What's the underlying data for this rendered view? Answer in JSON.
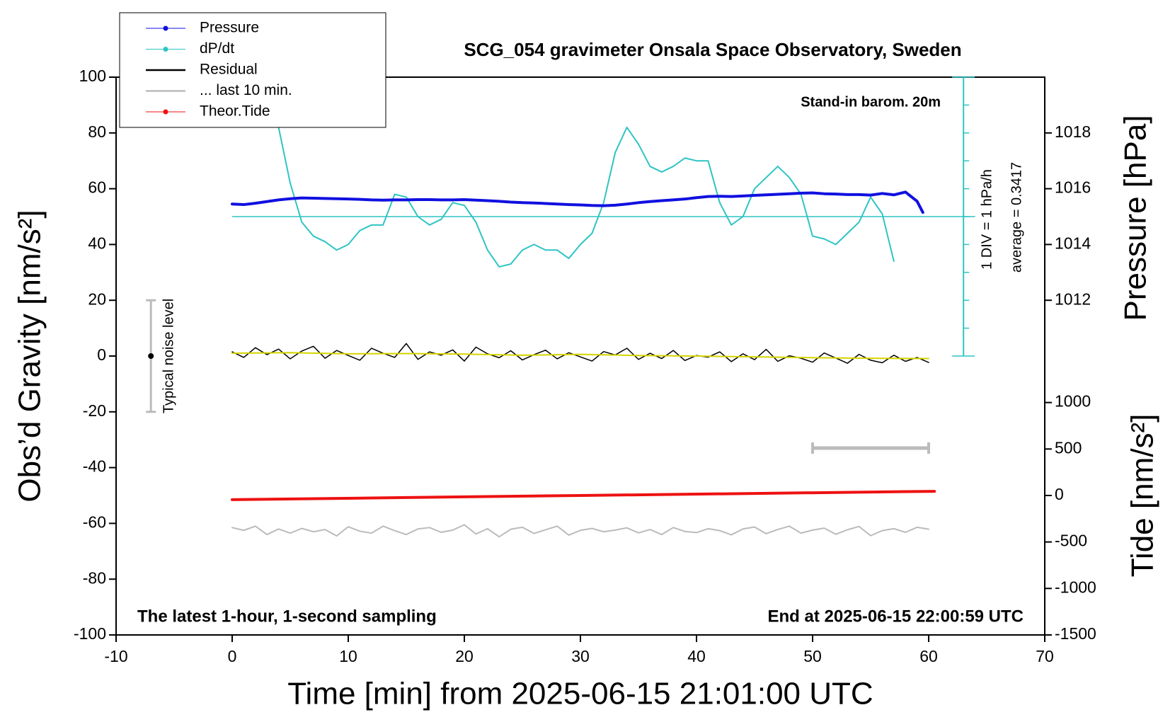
{
  "chart_data": {
    "type": "line",
    "title": "SCG_054 gravimeter Onsala Space Observatory, Sweden",
    "x_label": "Time [min] from 2025-06-15 21:01:00 UTC",
    "y_label": "Obs’d Gravity [nm/s²]",
    "y2_label": "Pressure [hPa]",
    "y3_label": "Tide [nm/s²]",
    "xlim": [
      -10,
      70
    ],
    "xticks": [
      -10,
      0,
      10,
      20,
      30,
      40,
      50,
      60,
      70
    ],
    "ylim": [
      -100,
      100
    ],
    "yticks": [
      -100,
      -80,
      -60,
      -40,
      -20,
      0,
      20,
      40,
      60,
      80,
      100
    ],
    "y2lim": [
      1000,
      1020
    ],
    "y2ticks": [
      1012,
      1014,
      1016,
      1018
    ],
    "y3lim": [
      -1500,
      4500
    ],
    "y3ticks": [
      -1500,
      -1000,
      -500,
      0,
      500,
      1000
    ],
    "annotations": {
      "barometer": "Stand-in barom. 20m",
      "division": "1 DIV = 1 hPa/h",
      "average": "average = 0.3417",
      "noise": "Typical noise level",
      "window": "The latest 1-hour, 1-second sampling",
      "end": "End at 2025-06-15 22:00:59 UTC"
    },
    "reference_line": {
      "y": 50,
      "x": [
        0,
        64
      ],
      "color": "#2ec4c4"
    },
    "dpdt_scale": {
      "x": 63,
      "ticks": [
        0,
        10,
        20,
        30,
        40,
        50,
        60,
        70,
        80,
        90,
        100
      ],
      "color": "#2ec4c4"
    },
    "noise_bar": {
      "x": -7,
      "value": 0,
      "error": 20
    },
    "last_10min_marker": {
      "x": [
        50,
        60
      ],
      "y": -33,
      "color": "#bbbbbb"
    },
    "series": [
      {
        "name": "Pressure",
        "color": "#1010e0",
        "axis": "y2",
        "marker": true,
        "width": 4,
        "x": [
          0,
          1,
          2,
          3,
          4,
          5,
          6,
          7,
          8,
          9,
          10,
          11,
          12,
          13,
          14,
          15,
          16,
          17,
          18,
          19,
          20,
          21,
          22,
          23,
          24,
          25,
          26,
          27,
          28,
          29,
          30,
          31,
          32,
          33,
          34,
          35,
          36,
          37,
          38,
          39,
          40,
          41,
          42,
          43,
          44,
          45,
          46,
          47,
          48,
          49,
          50,
          51,
          52,
          53,
          54,
          55,
          56,
          57,
          58,
          59,
          59.5
        ],
        "values": [
          1015.45,
          1015.43,
          1015.48,
          1015.54,
          1015.6,
          1015.64,
          1015.67,
          1015.66,
          1015.65,
          1015.64,
          1015.63,
          1015.62,
          1015.6,
          1015.59,
          1015.6,
          1015.6,
          1015.61,
          1015.61,
          1015.6,
          1015.6,
          1015.61,
          1015.59,
          1015.57,
          1015.55,
          1015.52,
          1015.5,
          1015.49,
          1015.47,
          1015.45,
          1015.43,
          1015.42,
          1015.4,
          1015.39,
          1015.41,
          1015.45,
          1015.5,
          1015.54,
          1015.57,
          1015.6,
          1015.63,
          1015.68,
          1015.72,
          1015.73,
          1015.72,
          1015.74,
          1015.76,
          1015.78,
          1015.8,
          1015.82,
          1015.84,
          1015.85,
          1015.82,
          1015.81,
          1015.79,
          1015.79,
          1015.77,
          1015.83,
          1015.78,
          1015.88,
          1015.55,
          1015.15
        ]
      },
      {
        "name": "dP/dt",
        "color": "#2ec4c4",
        "axis": "y",
        "marker": true,
        "width": 2,
        "x": [
          3,
          4,
          5,
          6,
          7,
          8,
          9,
          10,
          11,
          12,
          13,
          14,
          15,
          16,
          17,
          18,
          19,
          20,
          21,
          22,
          23,
          24,
          25,
          26,
          27,
          28,
          29,
          30,
          31,
          32,
          33,
          34,
          35,
          36,
          37,
          38,
          39,
          40,
          41,
          42,
          43,
          44,
          45,
          46,
          47,
          48,
          49,
          50,
          51,
          52,
          53,
          54,
          55,
          56,
          57
        ],
        "values": [
          100,
          82,
          62,
          48,
          43,
          41,
          38,
          40,
          45,
          47,
          47,
          58,
          57,
          50,
          47,
          49,
          55,
          54,
          48,
          38,
          32,
          33,
          38,
          40,
          38,
          38,
          35,
          40,
          44,
          55,
          73,
          82,
          76,
          68,
          66,
          68,
          71,
          70,
          70,
          55,
          47,
          50,
          60,
          64,
          68,
          64,
          58,
          43,
          42,
          40,
          44,
          48,
          57,
          51,
          34
        ]
      },
      {
        "name": "Residual",
        "color": "#000000",
        "axis": "y",
        "width": 1.5,
        "x": [
          0,
          1,
          2,
          3,
          4,
          5,
          6,
          7,
          8,
          9,
          10,
          11,
          12,
          13,
          14,
          15,
          16,
          17,
          18,
          19,
          20,
          21,
          22,
          23,
          24,
          25,
          26,
          27,
          28,
          29,
          30,
          31,
          32,
          33,
          34,
          35,
          36,
          37,
          38,
          39,
          40,
          41,
          42,
          43,
          44,
          45,
          46,
          47,
          48,
          49,
          50,
          51,
          52,
          53,
          54,
          55,
          56,
          57,
          58,
          59,
          60
        ],
        "values": [
          1.5,
          -0.5,
          3,
          0.5,
          2.5,
          -1,
          1.8,
          3.5,
          -0.8,
          2,
          0.2,
          -1.5,
          2.8,
          1,
          -0.5,
          4.5,
          -1.2,
          1.5,
          0.3,
          2.2,
          -1.8,
          3.2,
          0.8,
          -0.6,
          1.9,
          -1.4,
          0.5,
          2.1,
          -1,
          1.2,
          -0.3,
          -1.8,
          1.6,
          0.4,
          2.8,
          -1.2,
          1,
          -0.9,
          2,
          -1.6,
          0.2,
          -0.4,
          1.5,
          -2,
          0.8,
          -1.3,
          2.4,
          -1.9,
          0.1,
          -0.8,
          -2.2,
          1.1,
          -0.7,
          -2.6,
          0.6,
          -1.5,
          -2.4,
          0.3,
          -1.9,
          -0.5,
          -2.3
        ]
      },
      {
        "name": "... last 10 min.",
        "color": "#bbbbbb",
        "axis": "y",
        "width": 2,
        "x": [
          0,
          1,
          2,
          3,
          4,
          5,
          6,
          7,
          8,
          9,
          10,
          11,
          12,
          13,
          14,
          15,
          16,
          17,
          18,
          19,
          20,
          21,
          22,
          23,
          24,
          25,
          26,
          27,
          28,
          29,
          30,
          31,
          32,
          33,
          34,
          35,
          36,
          37,
          38,
          39,
          40,
          41,
          42,
          43,
          44,
          45,
          46,
          47,
          48,
          49,
          50,
          51,
          52,
          53,
          54,
          55,
          56,
          57,
          58,
          59,
          60
        ],
        "values": [
          -61.5,
          -62.5,
          -61,
          -64,
          -62,
          -63.5,
          -61.8,
          -63,
          -62.2,
          -64.5,
          -61.2,
          -62.8,
          -63.5,
          -61,
          -62.6,
          -64,
          -62,
          -61.5,
          -63.2,
          -62.4,
          -60.5,
          -63.8,
          -61.9,
          -64.8,
          -62.1,
          -61.4,
          -63.6,
          -62.3,
          -61,
          -64.2,
          -62.5,
          -61.8,
          -63,
          -62.4,
          -61.6,
          -63.4,
          -62.2,
          -64,
          -61.5,
          -62.9,
          -63.3,
          -61.9,
          -62.6,
          -64.1,
          -62,
          -61.3,
          -63.7,
          -62.2,
          -61,
          -63.5,
          -62.4,
          -61.7,
          -63.9,
          -62.3,
          -61.1,
          -64.4,
          -62.6,
          -61.9,
          -63.2,
          -61.4,
          -62.1
        ]
      },
      {
        "name": "Theor.Tide",
        "color": "#ee1111",
        "axis": "y3",
        "marker": true,
        "width": 4,
        "x": [
          0,
          15,
          30,
          45,
          60.5
        ],
        "values": [
          -45,
          -22,
          0,
          22,
          45
        ]
      },
      {
        "color": "#d4d400",
        "axis": "y",
        "width": 2,
        "x": [
          0,
          5,
          10,
          15,
          20,
          25,
          30,
          35,
          40,
          45,
          50,
          55,
          60
        ],
        "values": [
          1,
          1.2,
          0.8,
          0.9,
          0.7,
          0.3,
          0.6,
          0.2,
          0,
          -0.3,
          -0.6,
          -0.8,
          -0.9
        ]
      }
    ]
  }
}
